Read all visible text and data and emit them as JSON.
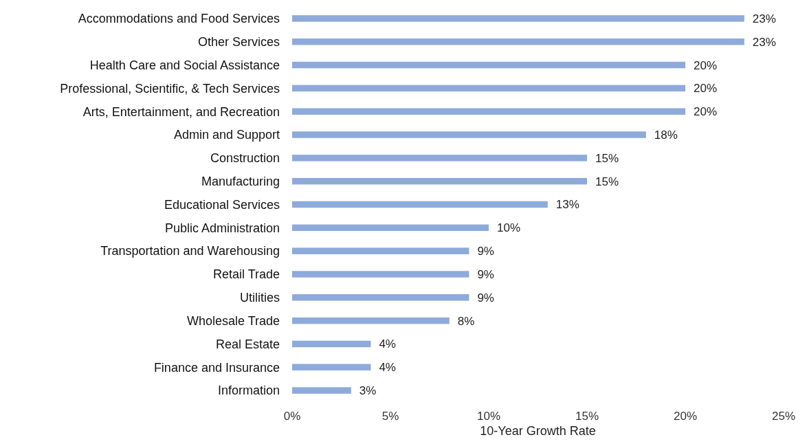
{
  "chart_data": {
    "type": "bar",
    "orientation": "horizontal",
    "xlabel": "10-Year Growth Rate",
    "categories": [
      "Accommodations and Food Services",
      "Other Services",
      "Health Care and Social Assistance",
      "Professional, Scientific, & Tech Services",
      "Arts, Entertainment, and Recreation",
      "Admin and Support",
      "Construction",
      "Manufacturing",
      "Educational Services",
      "Public Administration",
      "Transportation and Warehousing",
      "Retail Trade",
      "Utilities",
      "Wholesale Trade",
      "Real Estate",
      "Finance and Insurance",
      "Information"
    ],
    "values": [
      23,
      23,
      20,
      20,
      20,
      18,
      15,
      15,
      13,
      10,
      9,
      9,
      9,
      8,
      4,
      4,
      3
    ],
    "value_labels": [
      "23%",
      "23%",
      "20%",
      "20%",
      "20%",
      "18%",
      "15%",
      "15%",
      "13%",
      "10%",
      "9%",
      "9%",
      "9%",
      "8%",
      "4%",
      "4%",
      "3%"
    ],
    "color": "#8eaadb",
    "xlim": [
      0,
      25
    ],
    "xticks": [
      {
        "value": 0,
        "label": "0%"
      },
      {
        "value": 5,
        "label": "5%"
      },
      {
        "value": 10,
        "label": "10%"
      },
      {
        "value": 15,
        "label": "15%"
      },
      {
        "value": 20,
        "label": "20%"
      },
      {
        "value": 25,
        "label": "25%"
      }
    ],
    "grid": false
  }
}
